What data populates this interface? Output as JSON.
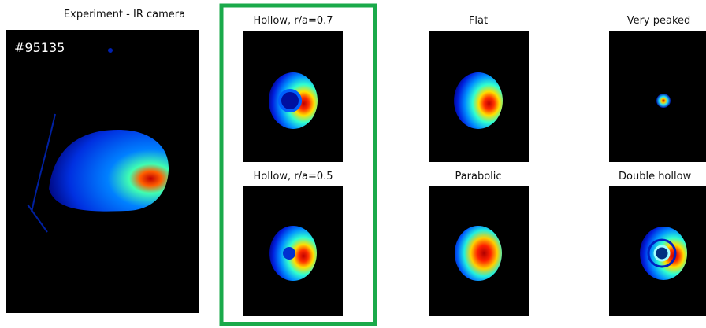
{
  "experiment": {
    "title": "Experiment - IR camera",
    "shot": "#95135"
  },
  "simulations": [
    {
      "title": "Hollow, r/a=0.7"
    },
    {
      "title": "Hollow, r/a=0.5"
    },
    {
      "title": "Flat"
    },
    {
      "title": "Parabolic"
    },
    {
      "title": "Very peaked"
    },
    {
      "title": "Double hollow"
    }
  ]
}
